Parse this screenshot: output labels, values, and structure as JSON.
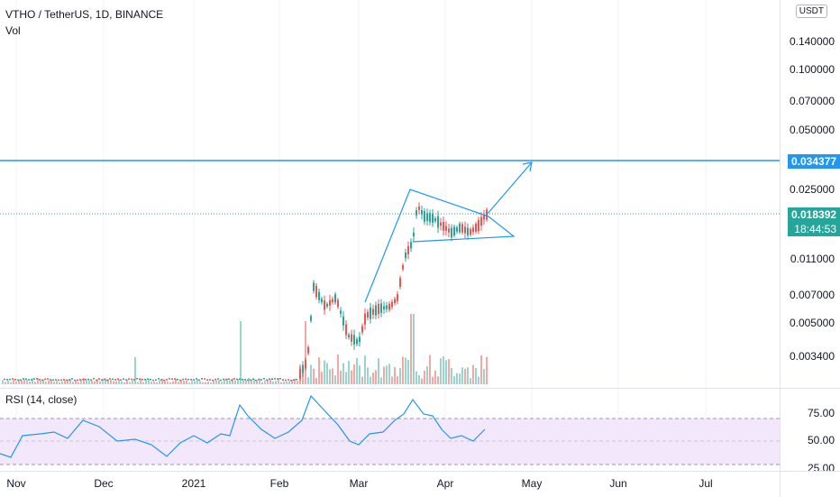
{
  "legend": {
    "symbol": "VTHO / TetherUS, 1D, BINANCE",
    "volume": "Vol",
    "rsi": "RSI (14, close)"
  },
  "price_axis": {
    "currency": "USDT",
    "ticks": [
      "0.140000",
      "0.100000",
      "0.070000",
      "0.050000",
      "0.025000",
      "0.011000",
      "0.007000",
      "0.005000",
      "0.003400"
    ]
  },
  "price_tags": {
    "target": "0.034377",
    "last": "0.018392",
    "countdown": "18:44:53"
  },
  "rsi_axis": {
    "ticks": [
      "75.00",
      "50.00",
      "25.00"
    ]
  },
  "time_axis": {
    "labels": [
      "Nov",
      "Dec",
      "2021",
      "Feb",
      "Mar",
      "Apr",
      "May",
      "Jun",
      "Jul"
    ]
  },
  "colors": {
    "up": "#26a69a",
    "down": "#ef5350",
    "drawing": "#2196f3",
    "rsi_line": "#2196f3",
    "rsi_band": "#f3e8fb"
  },
  "chart_data": {
    "type": "candlestick",
    "title": "VTHO / TetherUS, 1D, BINANCE",
    "price_scale": "log",
    "last_price": 0.018392,
    "target_level": 0.034377,
    "volume_indicator": "Vol",
    "rsi": {
      "name": "RSI (14, close)",
      "bands": [
        70,
        30
      ],
      "axis_ticks": [
        75,
        50,
        25
      ]
    }
  }
}
